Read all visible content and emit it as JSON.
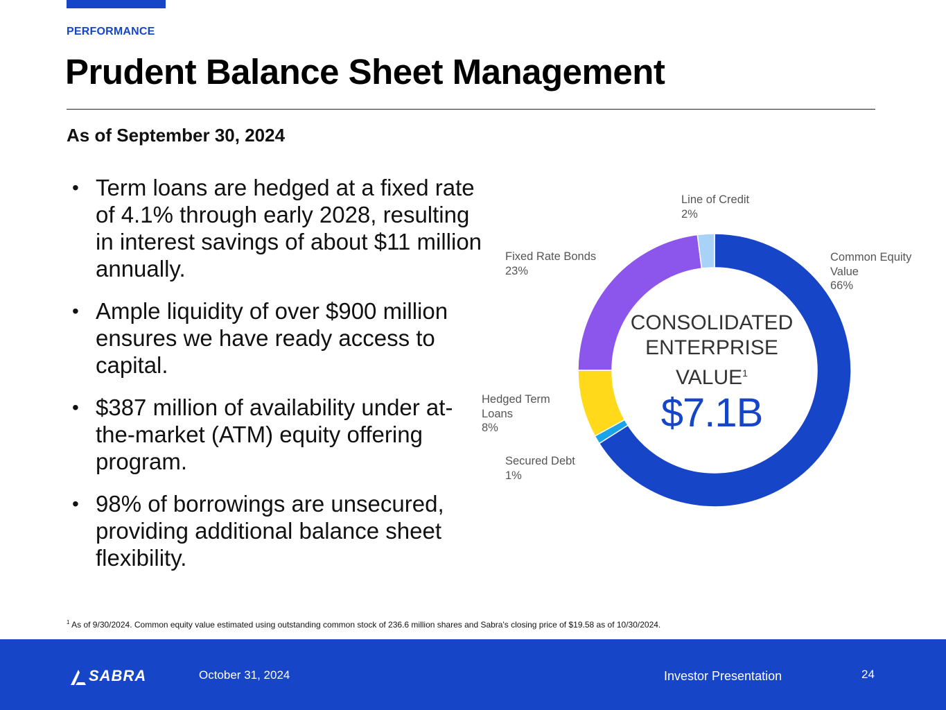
{
  "header": {
    "section": "PERFORMANCE",
    "title": "Prudent Balance Sheet Management",
    "subtitle": "As of September 30, 2024"
  },
  "bullets": [
    "Term loans are hedged at a fixed rate of 4.1% through early 2028, resulting in interest savings of about $11 million annually.",
    "Ample liquidity of over $900 million ensures we have ready access to capital.",
    "$387 million of availability under at-the-market (ATM) equity offering program.",
    "98% of borrowings are unsecured, providing additional balance sheet flexibility."
  ],
  "chart_data": {
    "type": "pie",
    "style": "donut",
    "title": "CONSOLIDATED ENTERPRISE VALUE",
    "title_superscript": "1",
    "total_label": "$7.1B",
    "slices": [
      {
        "name": "Common Equity Value",
        "label_lines": [
          "Common Equity",
          "Value"
        ],
        "value": 66,
        "value_label": "66%",
        "color": "#1745c8"
      },
      {
        "name": "Secured Debt",
        "label_lines": [
          "Secured Debt"
        ],
        "value": 1,
        "value_label": "1%",
        "color": "#1aa3e8"
      },
      {
        "name": "Hedged Term Loans",
        "label_lines": [
          "Hedged Term",
          "Loans"
        ],
        "value": 8,
        "value_label": "8%",
        "color": "#ffd91a"
      },
      {
        "name": "Fixed Rate Bonds",
        "label_lines": [
          "Fixed Rate Bonds"
        ],
        "value": 23,
        "value_label": "23%",
        "color": "#8c55ec"
      },
      {
        "name": "Line of Credit",
        "label_lines": [
          "Line of Credit"
        ],
        "value": 2,
        "value_label": "2%",
        "color": "#a8d2f7"
      }
    ]
  },
  "footnote": {
    "marker": "1",
    "text": "As of 9/30/2024. Common equity value estimated using outstanding common stock of 236.6 million shares and Sabra's closing price of $19.58 as of 10/30/2024."
  },
  "footer": {
    "logo_text": "SABRA",
    "date": "October 31, 2024",
    "presentation": "Investor Presentation",
    "page_number": "24"
  }
}
